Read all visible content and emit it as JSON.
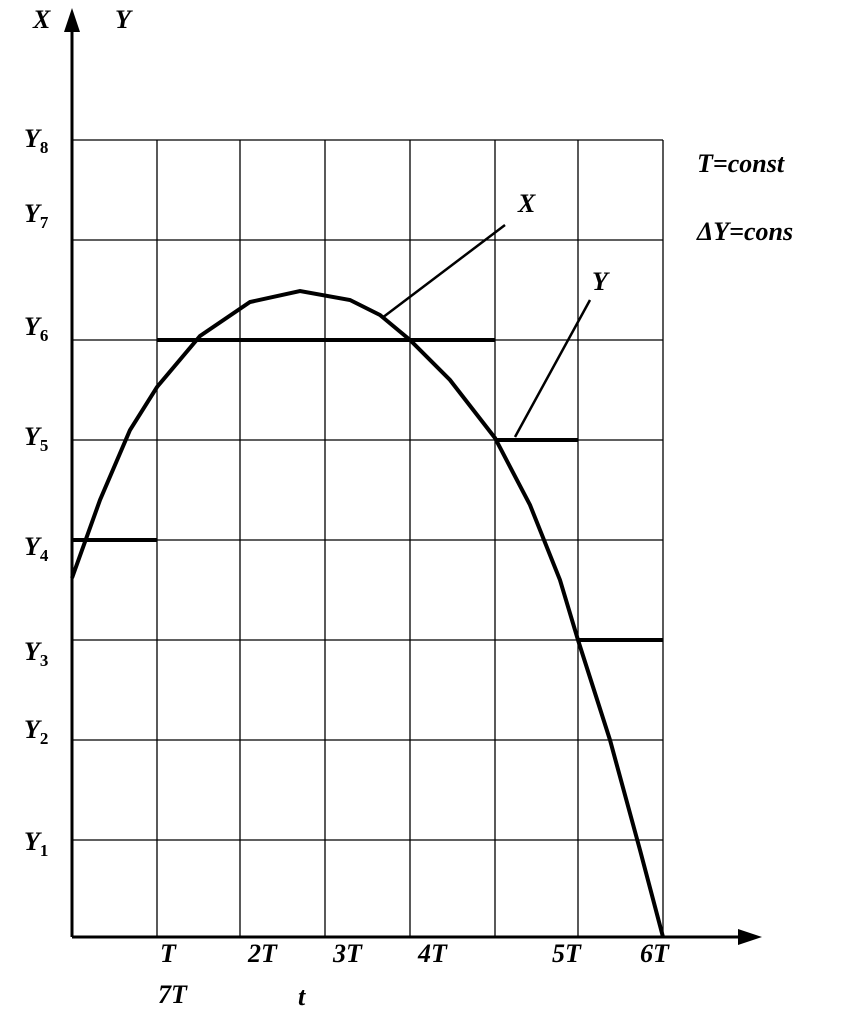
{
  "axes": {
    "x_axis_top": "X",
    "y_axis_top": "Y",
    "t_axis": "t"
  },
  "y_levels": [
    {
      "letter": "Y",
      "sub": "1"
    },
    {
      "letter": "Y",
      "sub": "2"
    },
    {
      "letter": "Y",
      "sub": "3"
    },
    {
      "letter": "Y",
      "sub": "4"
    },
    {
      "letter": "Y",
      "sub": "5"
    },
    {
      "letter": "Y",
      "sub": "6"
    },
    {
      "letter": "Y",
      "sub": "7"
    },
    {
      "letter": "Y",
      "sub": "8"
    }
  ],
  "time_ticks": [
    "T",
    "2T",
    "3T",
    "4T",
    "5T",
    "6T"
  ],
  "extra_tick": "7T",
  "curve_labels": {
    "x_curve": "X",
    "y_steps": "Y"
  },
  "notes": [
    "T=const",
    "ΔY=cons"
  ]
}
